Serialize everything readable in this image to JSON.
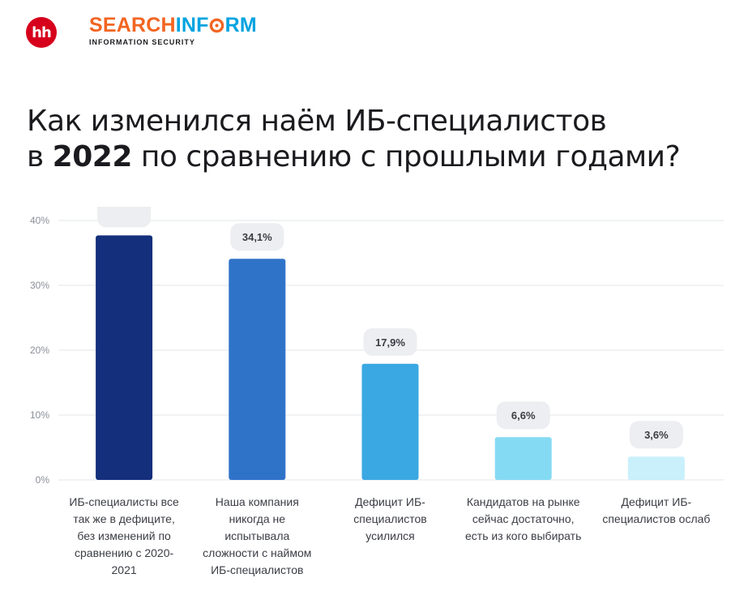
{
  "logos": {
    "hh": "hh",
    "brand_part1": "SEARCH",
    "brand_part2": "INF",
    "brand_part3": "RM",
    "tagline": "INFORMATION SECURITY"
  },
  "title": {
    "line1": "Как изменился наём ИБ-специалистов",
    "line2_prefix": "в ",
    "line2_year": "2022",
    "line2_suffix": " по сравнению с прошлыми годами?"
  },
  "chart_data": {
    "type": "bar",
    "categories": [
      "ИБ-специалисты все так же в дефиците, без изменений по сравнению с 2020-2021",
      "Наша компания никогда не испытывала сложности с наймом ИБ-специалистов",
      "Дефицит ИБ-специалистов усилился",
      "Кандидатов на рынке сейчас достаточно, есть из кого выбирать",
      "Дефицит ИБ-специалистов ослаб"
    ],
    "values": [
      37.7,
      34.1,
      17.9,
      6.6,
      3.6
    ],
    "value_labels": [
      "",
      "34,1%",
      "17,9%",
      "6,6%",
      "3,6%"
    ],
    "bar_colors": [
      "#142f7c",
      "#2f73c9",
      "#3aa8e2",
      "#85daf3",
      "#c9f0fb"
    ],
    "ylim": [
      0,
      40
    ],
    "yticks": [
      0,
      10,
      20,
      30,
      40
    ],
    "ytick_labels": [
      "0%",
      "10%",
      "20%",
      "30%",
      "40%"
    ],
    "grid": true
  }
}
